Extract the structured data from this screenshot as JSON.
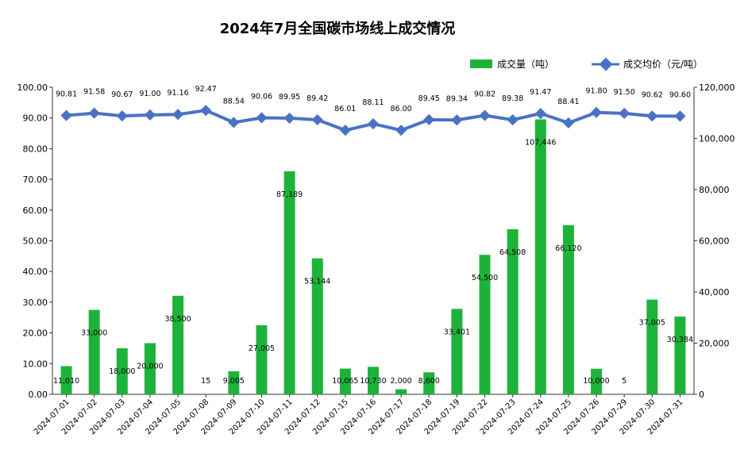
{
  "chart_data": {
    "type": "bar",
    "title": "2024年7月全国碳市场线上成交情况",
    "categories": [
      "2024-07-01",
      "2024-07-02",
      "2024-07-03",
      "2024-07-04",
      "2024-07-05",
      "2024-07-08",
      "2024-07-09",
      "2024-07-10",
      "2024-07-11",
      "2024-07-12",
      "2024-07-15",
      "2024-07-16",
      "2024-07-17",
      "2024-07-18",
      "2024-07-19",
      "2024-07-22",
      "2024-07-23",
      "2024-07-24",
      "2024-07-25",
      "2024-07-26",
      "2024-07-29",
      "2024-07-30",
      "2024-07-31"
    ],
    "series": [
      {
        "name": "成交量（吨）",
        "type": "bar",
        "axis": "right",
        "color": "#1db33a",
        "values": [
          11010,
          33000,
          18000,
          20000,
          38500,
          15,
          9005,
          27005,
          87189,
          53144,
          10065,
          10730,
          2000,
          8600,
          33401,
          54500,
          64508,
          107446,
          66120,
          10000,
          5,
          37005,
          30384
        ],
        "labels": [
          "11,010",
          "33,000",
          "18,000",
          "20,000",
          "38,500",
          "15",
          "9,005",
          "27,005",
          "87,189",
          "53,144",
          "10,065",
          "10,730",
          "2,000",
          "8,600",
          "33,401",
          "54,500",
          "64,508",
          "107,446",
          "66,120",
          "10,000",
          "5",
          "37,005",
          "30,384"
        ]
      },
      {
        "name": "成交均价（元/吨）",
        "type": "line",
        "axis": "left",
        "color": "#4a72c4",
        "values": [
          90.81,
          91.58,
          90.67,
          91.0,
          91.16,
          92.47,
          88.54,
          90.06,
          89.95,
          89.42,
          86.01,
          88.11,
          86.0,
          89.45,
          89.34,
          90.82,
          89.38,
          91.47,
          88.41,
          91.8,
          91.5,
          90.62,
          90.6
        ],
        "labels": [
          "90.81",
          "91.58",
          "90.67",
          "91.00",
          "91.16",
          "92.47",
          "88.54",
          "90.06",
          "89.95",
          "89.42",
          "86.01",
          "88.11",
          "86.00",
          "89.45",
          "89.34",
          "90.82",
          "89.38",
          "91.47",
          "88.41",
          "91.80",
          "91.50",
          "90.62",
          "90.60"
        ]
      }
    ],
    "left_axis": {
      "min": 0,
      "max": 100,
      "step": 10,
      "tick_labels": [
        "0.00",
        "10.00",
        "20.00",
        "30.00",
        "40.00",
        "50.00",
        "60.00",
        "70.00",
        "80.00",
        "90.00",
        "100.00"
      ]
    },
    "right_axis": {
      "min": 0,
      "max": 120000,
      "step": 20000,
      "tick_labels": [
        "0",
        "20,000",
        "40,000",
        "60,000",
        "80,000",
        "100,000",
        "120,000"
      ]
    },
    "grid": false,
    "legend_position": "top-right"
  }
}
